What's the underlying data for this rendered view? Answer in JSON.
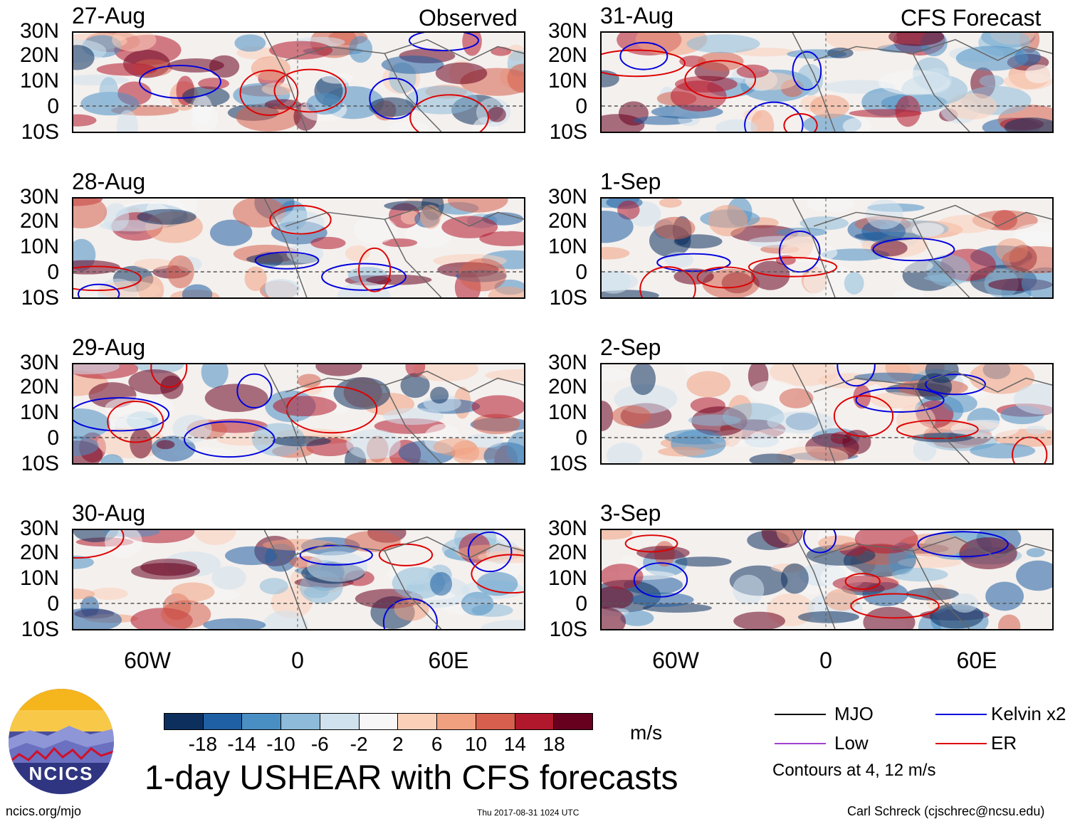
{
  "title": "1-day USHEAR with CFS forecasts",
  "headers": {
    "observed": "Observed",
    "forecast": "CFS Forecast"
  },
  "panels": [
    {
      "date": "27-Aug",
      "group": "observed"
    },
    {
      "date": "28-Aug",
      "group": "observed"
    },
    {
      "date": "29-Aug",
      "group": "observed"
    },
    {
      "date": "30-Aug",
      "group": "observed"
    },
    {
      "date": "31-Aug",
      "group": "forecast"
    },
    {
      "date": "1-Sep",
      "group": "forecast"
    },
    {
      "date": "2-Sep",
      "group": "forecast"
    },
    {
      "date": "3-Sep",
      "group": "forecast"
    }
  ],
  "axes": {
    "lat_labels": [
      "30N",
      "20N",
      "10N",
      "0",
      "10S"
    ],
    "lon_labels": [
      "60W",
      "0",
      "60E"
    ]
  },
  "colorbar": {
    "labels": [
      "-18",
      "-14",
      "-10",
      "-6",
      "-2",
      "2",
      "6",
      "10",
      "14",
      "18"
    ],
    "colors": [
      "#0d2f5e",
      "#1f5fa3",
      "#4a8fc4",
      "#8dbbd9",
      "#cfe2ee",
      "#f7f7f7",
      "#fbd0b9",
      "#f0a07f",
      "#d6604d",
      "#b2182b",
      "#67001f"
    ],
    "unit": "m/s"
  },
  "legend": {
    "items": [
      {
        "label": "MJO",
        "color": "#000000"
      },
      {
        "label": "Kelvin x2",
        "color": "#0000dd"
      },
      {
        "label": "Low",
        "color": "#a040d0"
      },
      {
        "label": "ER",
        "color": "#dd0000"
      }
    ],
    "note": "Contours at 4, 12 m/s"
  },
  "logo": {
    "text": "NCICS"
  },
  "footer": {
    "left": "ncics.org/mjo",
    "center": "Thu 2017-08-31 1024 UTC",
    "right": "Carl Schreck (cjschrec@ncsu.edu)"
  }
}
